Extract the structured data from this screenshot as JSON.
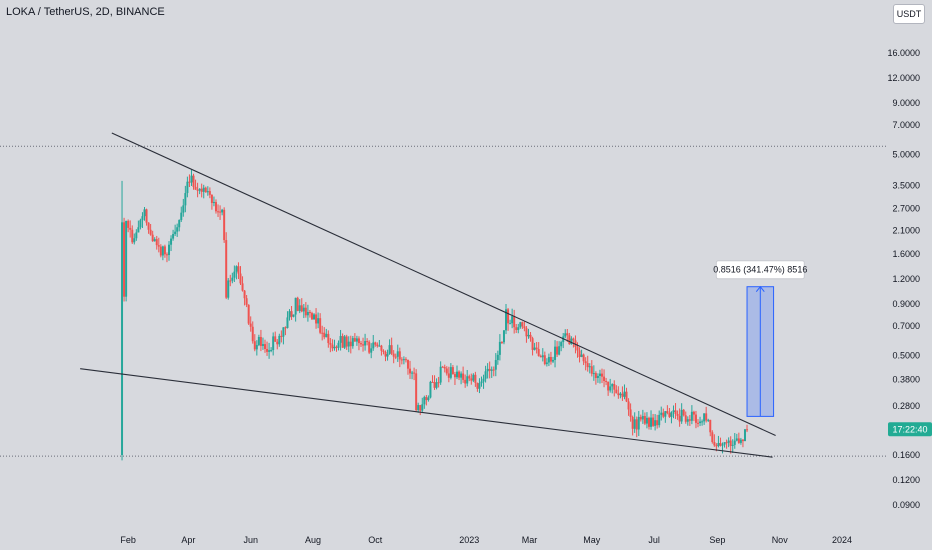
{
  "chart_data": {
    "type": "candlestick",
    "title": "LOKA / TetherUS, 2D, BINANCE",
    "currency": "USDT",
    "log_scale": true,
    "ylim": [
      0.075,
      17
    ],
    "y_ticks": [
      "16.0000",
      "12.0000",
      "9.0000",
      "7.0000",
      "5.0000",
      "3.5000",
      "2.7000",
      "2.1000",
      "1.6000",
      "1.2000",
      "0.9000",
      "0.7000",
      "0.5000",
      "0.3800",
      "0.2800",
      "0.2100",
      "0.1600",
      "0.1200",
      "0.0900"
    ],
    "x_ticks": [
      "Feb",
      "Apr",
      "Jun",
      "Aug",
      "Oct",
      "2023",
      "Mar",
      "May",
      "Jul",
      "Sep",
      "Nov",
      "2024"
    ],
    "last_price_label": "17:22:40",
    "price_path": [
      [
        "2022-01-26",
        0.16
      ],
      [
        "2022-01-29",
        2.3
      ],
      [
        "2022-02-06",
        1.9
      ],
      [
        "2022-02-16",
        2.6
      ],
      [
        "2022-02-28",
        1.8
      ],
      [
        "2022-03-09",
        1.6
      ],
      [
        "2022-03-22",
        2.4
      ],
      [
        "2022-04-01",
        3.8
      ],
      [
        "2022-04-12",
        3.4
      ],
      [
        "2022-04-26",
        2.8
      ],
      [
        "2022-05-05",
        2.5
      ],
      [
        "2022-05-08",
        1.05
      ],
      [
        "2022-05-18",
        1.35
      ],
      [
        "2022-05-24",
        1.1
      ],
      [
        "2022-06-03",
        0.58
      ],
      [
        "2022-06-17",
        0.56
      ],
      [
        "2022-06-29",
        0.6
      ],
      [
        "2022-07-15",
        0.9
      ],
      [
        "2022-07-31",
        0.78
      ],
      [
        "2022-08-19",
        0.58
      ],
      [
        "2022-09-08",
        0.6
      ],
      [
        "2022-09-26",
        0.55
      ],
      [
        "2022-10-16",
        0.52
      ],
      [
        "2022-10-31",
        0.47
      ],
      [
        "2022-11-08",
        0.41
      ],
      [
        "2022-11-10",
        0.26
      ],
      [
        "2022-11-20",
        0.32
      ],
      [
        "2022-12-05",
        0.42
      ],
      [
        "2022-12-20",
        0.4
      ],
      [
        "2023-01-09",
        0.37
      ],
      [
        "2023-01-29",
        0.48
      ],
      [
        "2023-02-06",
        0.79
      ],
      [
        "2023-02-20",
        0.68
      ],
      [
        "2023-03-03",
        0.56
      ],
      [
        "2023-03-14",
        0.48
      ],
      [
        "2023-03-28",
        0.52
      ],
      [
        "2023-04-07",
        0.62
      ],
      [
        "2023-04-20",
        0.51
      ],
      [
        "2023-05-01",
        0.39
      ],
      [
        "2023-05-18",
        0.36
      ],
      [
        "2023-06-03",
        0.33
      ],
      [
        "2023-06-10",
        0.23
      ],
      [
        "2023-06-29",
        0.24
      ],
      [
        "2023-07-15",
        0.25
      ],
      [
        "2023-08-03",
        0.25
      ],
      [
        "2023-08-21",
        0.24
      ],
      [
        "2023-08-29",
        0.18
      ],
      [
        "2023-09-14",
        0.175
      ],
      [
        "2023-09-26",
        0.195
      ],
      [
        "2023-09-30",
        0.22
      ]
    ],
    "lines": [
      {
        "name": "upper-trendline",
        "from": [
          "2022-01-16",
          6.4
        ],
        "to": [
          "2023-10-28",
          0.2
        ]
      },
      {
        "name": "lower-trendline",
        "from": [
          "2021-12-16",
          0.43
        ],
        "to": [
          "2023-10-25",
          0.156
        ]
      }
    ],
    "horizontal_levels": [
      5.5,
      0.158
    ],
    "measure": {
      "label": "0.8516 (341.47%) 8516",
      "from_date": "2023-09-30",
      "to_date": "2023-10-26",
      "low": 0.249,
      "high": 1.1
    },
    "colors": {
      "up": "#26a69a",
      "down": "#ef5350",
      "background": "#d7d9de",
      "trendline": "#2a2e39",
      "measure": "#2962ff",
      "price_tag": "#22ab94"
    }
  }
}
